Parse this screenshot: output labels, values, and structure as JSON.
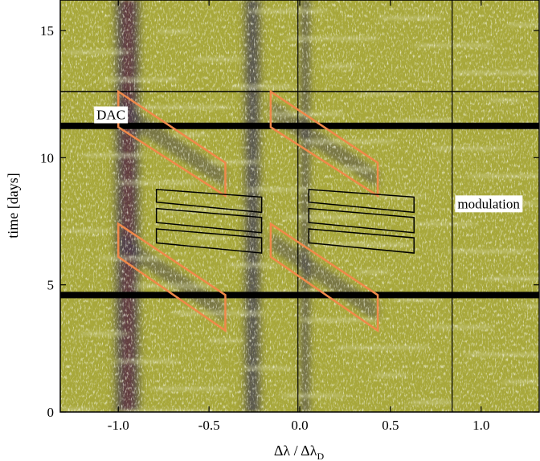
{
  "chart_data": {
    "type": "heatmap",
    "title": "",
    "xlabel": "Δλ / Δλ_D",
    "xlabel_main": "Δλ / Δλ",
    "xlabel_sub": "D",
    "ylabel": "time [days]",
    "xlim": [
      -1.32,
      1.32
    ],
    "ylim": [
      0,
      16.2
    ],
    "xticks": [
      -1.0,
      -0.5,
      0.0,
      0.5,
      1.0
    ],
    "xtick_labels": [
      "-1.0",
      "-0.5",
      "0.0",
      "0.5",
      "1.0"
    ],
    "yticks": [
      0,
      5,
      10,
      15
    ],
    "ytick_labels": [
      "0",
      "5",
      "10",
      "15"
    ],
    "grid": false,
    "colors": {
      "background": "#a8a83a",
      "light_streak": "#e6e8c4",
      "dark_band": "#3f3a55",
      "dac_core": "#6a2630",
      "dac_box": "#f0894a",
      "modulation_box": "#000000",
      "gap_line": "#000000"
    },
    "absorption_bands": [
      {
        "x_center": -0.95,
        "width": 0.13
      },
      {
        "x_center": -0.26,
        "width": 0.08
      },
      {
        "x_center": 0.03,
        "width": 0.04
      }
    ],
    "data_gaps": [
      {
        "time": 11.25,
        "thick": true
      },
      {
        "time": 4.6,
        "thick": true
      },
      {
        "time": 12.6,
        "thick": false
      }
    ],
    "vertical_markers": [
      {
        "x": -0.01
      },
      {
        "x": 0.84
      }
    ],
    "dac_boxes": [
      {
        "x_left": -1.0,
        "x_right": -0.41,
        "top_left": 12.6,
        "bottom_left": 11.2,
        "top_right": 9.8,
        "bottom_right": 8.5
      },
      {
        "x_left": -0.16,
        "x_right": 0.43,
        "top_left": 12.6,
        "bottom_left": 11.2,
        "top_right": 9.8,
        "bottom_right": 8.5
      },
      {
        "x_left": -1.0,
        "x_right": -0.41,
        "top_left": 7.4,
        "bottom_left": 6.1,
        "top_right": 4.6,
        "bottom_right": 3.2
      },
      {
        "x_left": -0.16,
        "x_right": 0.43,
        "top_left": 7.4,
        "bottom_left": 6.1,
        "top_right": 4.6,
        "bottom_right": 3.2
      }
    ],
    "modulation_boxes": [
      {
        "x_left": -0.79,
        "x_right": -0.21,
        "top_left": 8.75,
        "bottom_left": 8.25,
        "top_right": 8.45,
        "bottom_right": 7.85
      },
      {
        "x_left": -0.79,
        "x_right": -0.21,
        "top_left": 8.0,
        "bottom_left": 7.45,
        "top_right": 7.65,
        "bottom_right": 7.05
      },
      {
        "x_left": -0.79,
        "x_right": -0.21,
        "top_left": 7.2,
        "bottom_left": 6.65,
        "top_right": 6.85,
        "bottom_right": 6.25
      },
      {
        "x_left": 0.05,
        "x_right": 0.63,
        "top_left": 8.75,
        "bottom_left": 8.25,
        "top_right": 8.45,
        "bottom_right": 7.85
      },
      {
        "x_left": 0.05,
        "x_right": 0.63,
        "top_left": 8.0,
        "bottom_left": 7.45,
        "top_right": 7.65,
        "bottom_right": 7.05
      },
      {
        "x_left": 0.05,
        "x_right": 0.63,
        "top_left": 7.2,
        "bottom_left": 6.65,
        "top_right": 6.85,
        "bottom_right": 6.25
      }
    ],
    "annotations": [
      {
        "text": "DAC",
        "x": -1.12,
        "y": 11.7
      },
      {
        "text": "modulation",
        "x": 0.87,
        "y": 8.2
      }
    ]
  }
}
